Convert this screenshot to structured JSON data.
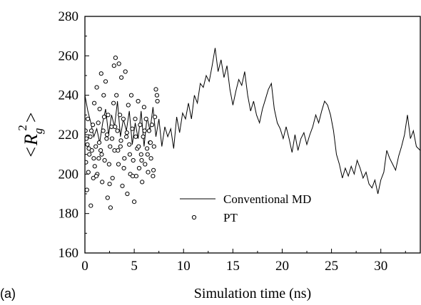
{
  "panel_label": "(a)",
  "chart_data": {
    "type": "line",
    "xlabel": "Simulation time (ns)",
    "ylabel": {
      "open": "<",
      "symbol": "R",
      "sub": "g",
      "sup": "2",
      "close": ">"
    },
    "xlim": [
      0,
      34
    ],
    "ylim": [
      160,
      280
    ],
    "xticks": [
      0,
      5,
      10,
      15,
      20,
      25,
      30
    ],
    "yticks": [
      160,
      180,
      200,
      220,
      240,
      260,
      280
    ],
    "legend_position": "center-right",
    "series": [
      {
        "name": "Conventional MD",
        "style": "line",
        "color": "#000000",
        "x": [
          0.0,
          0.3,
          0.6,
          0.9,
          1.2,
          1.5,
          1.8,
          2.1,
          2.4,
          2.7,
          3.0,
          3.3,
          3.6,
          3.9,
          4.2,
          4.5,
          4.8,
          5.1,
          5.4,
          5.7,
          6.0,
          6.3,
          6.6,
          6.9,
          7.2,
          7.5,
          7.8,
          8.1,
          8.4,
          8.7,
          9.0,
          9.3,
          9.6,
          9.9,
          10.2,
          10.5,
          10.8,
          11.1,
          11.4,
          11.7,
          12.0,
          12.3,
          12.6,
          12.9,
          13.2,
          13.5,
          13.8,
          14.1,
          14.4,
          14.7,
          15.0,
          15.3,
          15.6,
          15.9,
          16.2,
          16.5,
          16.8,
          17.1,
          17.4,
          17.7,
          18.0,
          18.3,
          18.6,
          18.9,
          19.2,
          19.5,
          19.8,
          20.1,
          20.4,
          20.7,
          21.0,
          21.3,
          21.6,
          21.9,
          22.2,
          22.5,
          22.8,
          23.1,
          23.4,
          23.7,
          24.0,
          24.3,
          24.6,
          24.9,
          25.2,
          25.5,
          25.8,
          26.1,
          26.4,
          26.7,
          27.0,
          27.3,
          27.6,
          27.9,
          28.2,
          28.5,
          28.8,
          29.1,
          29.4,
          29.7,
          30.0,
          30.3,
          30.6,
          30.9,
          31.2,
          31.5,
          31.8,
          32.1,
          32.4,
          32.7,
          33.0,
          33.3,
          33.6,
          34.0
        ],
        "values": [
          240,
          232,
          226,
          219,
          223,
          216,
          226,
          233,
          220,
          230,
          224,
          237,
          219,
          228,
          222,
          232,
          215,
          226,
          218,
          232,
          214,
          229,
          222,
          234,
          219,
          228,
          214,
          224,
          219,
          223,
          213,
          229,
          221,
          231,
          228,
          236,
          228,
          240,
          236,
          246,
          244,
          250,
          247,
          255,
          264,
          252,
          258,
          249,
          255,
          243,
          235,
          242,
          248,
          245,
          252,
          240,
          232,
          237,
          230,
          226,
          233,
          238,
          243,
          246,
          233,
          226,
          223,
          218,
          224,
          218,
          211,
          220,
          212,
          218,
          221,
          215,
          220,
          224,
          230,
          226,
          232,
          237,
          235,
          230,
          222,
          210,
          205,
          198,
          203,
          199,
          204,
          200,
          207,
          203,
          198,
          201,
          195,
          193,
          197,
          190,
          197,
          201,
          212,
          208,
          205,
          202,
          209,
          214,
          220,
          230,
          218,
          222,
          214,
          212
        ]
      },
      {
        "name": "PT",
        "style": "open-circle",
        "color": "#000000",
        "x": [
          0.05,
          0.1,
          0.2,
          0.25,
          0.3,
          0.35,
          0.45,
          0.55,
          0.6,
          0.7,
          0.8,
          0.85,
          0.95,
          1.0,
          1.1,
          1.2,
          1.25,
          1.35,
          1.4,
          1.5,
          1.6,
          1.65,
          1.75,
          1.85,
          1.9,
          2.0,
          2.1,
          2.2,
          2.3,
          2.35,
          2.45,
          2.55,
          2.6,
          2.7,
          2.8,
          2.9,
          2.95,
          3.0,
          3.1,
          3.2,
          3.3,
          3.4,
          3.45,
          3.55,
          3.6,
          3.7,
          3.8,
          3.9,
          4.0,
          4.1,
          4.2,
          4.3,
          4.4,
          4.5,
          4.6,
          4.7,
          4.8,
          4.9,
          5.0,
          5.1,
          5.2,
          5.3,
          5.4,
          5.5,
          5.6,
          5.7,
          5.8,
          5.9,
          6.0,
          6.1,
          6.2,
          6.3,
          6.4,
          6.5,
          6.6,
          6.7,
          6.8,
          6.9,
          7.0,
          7.1,
          7.2,
          7.3,
          7.35,
          0.15,
          0.4,
          0.65,
          0.9,
          1.15,
          1.45,
          1.7,
          1.95,
          2.25,
          2.5,
          2.75,
          3.05,
          3.35,
          3.65,
          3.95,
          4.25,
          4.55,
          4.85,
          5.15,
          5.45,
          5.75,
          6.05,
          6.35,
          6.65,
          6.95
        ],
        "values": [
          222,
          206,
          192,
          215,
          228,
          201,
          210,
          219,
          184,
          212,
          225,
          198,
          236,
          204,
          214,
          244,
          200,
          226,
          208,
          233,
          212,
          251,
          196,
          222,
          240,
          207,
          247,
          218,
          188,
          230,
          205,
          214,
          183,
          224,
          198,
          236,
          255,
          212,
          259,
          240,
          222,
          205,
          256,
          230,
          214,
          249,
          194,
          228,
          208,
          252,
          219,
          190,
          235,
          215,
          200,
          240,
          223,
          207,
          186,
          228,
          199,
          213,
          237,
          203,
          225,
          210,
          196,
          219,
          234,
          205,
          228,
          213,
          201,
          222,
          216,
          208,
          225,
          199,
          214,
          229,
          243,
          240,
          237,
          218,
          213,
          222,
          208,
          199,
          216,
          210,
          229,
          220,
          195,
          218,
          224,
          212,
          217,
          203,
          221,
          210,
          199,
          219,
          214,
          207,
          222,
          210,
          216,
          202
        ]
      }
    ]
  }
}
